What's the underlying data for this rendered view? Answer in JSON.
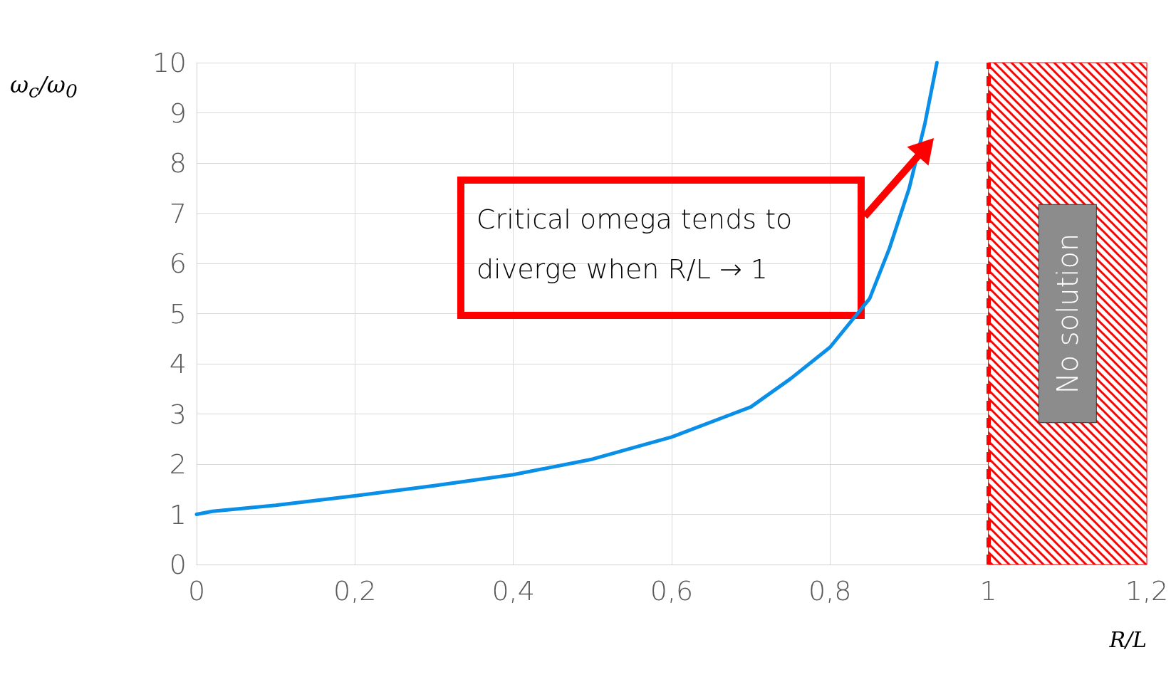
{
  "chart_data": {
    "type": "line",
    "xlabel": "R/L",
    "ylabel": "ω$_{c}$/ω$_{0}$",
    "x": [
      0,
      0.02,
      0.1,
      0.2,
      0.3,
      0.4,
      0.5,
      0.6,
      0.7,
      0.75,
      0.8,
      0.85,
      0.875,
      0.9,
      0.92,
      0.935
    ],
    "series": [
      {
        "color": "#0a8fe8",
        "values": [
          1,
          1.06,
          1.18,
          1.37,
          1.57,
          1.79,
          2.1,
          2.54,
          3.14,
          3.7,
          4.33,
          5.3,
          6.3,
          7.5,
          8.8,
          10
        ]
      }
    ],
    "xlim": [
      0,
      1.2
    ],
    "xticks": [
      0,
      {
        "value": 0.2,
        "label": "0,2"
      },
      {
        "value": 0.4,
        "label": "0,4"
      },
      {
        "value": 0.6,
        "label": "0,6"
      },
      {
        "value": 0.8,
        "label": "0,8"
      },
      1,
      {
        "value": 1.2,
        "label": "1,2"
      }
    ],
    "ylim": [
      0,
      10
    ],
    "yticks": [
      0,
      1,
      2,
      3,
      4,
      5,
      6,
      7,
      8,
      9,
      10
    ],
    "grid": true,
    "marker": "none",
    "line_style": "solid",
    "ref_lines": [
      {
        "axis": "x",
        "value": 1,
        "color": "#ff0000",
        "line_style": "dashed"
      }
    ],
    "bands": [
      {
        "axis": "x",
        "from": 1,
        "to": 1.2,
        "label": "No solution",
        "color": "#ff0000"
      }
    ],
    "annotations": [
      "Critical omega tends to diverge when R/L → 1"
    ]
  }
}
